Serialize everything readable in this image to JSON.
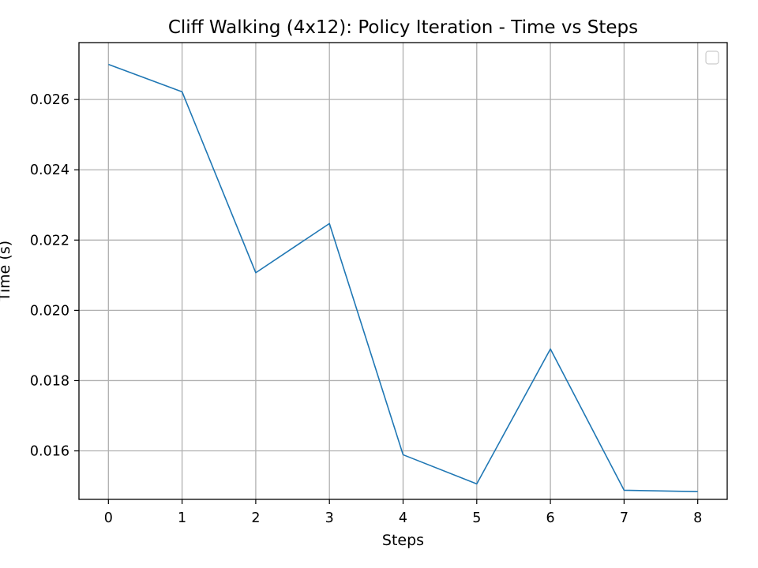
{
  "chart_data": {
    "type": "line",
    "title": "Cliff Walking (4x12): Policy Iteration - Time vs Steps",
    "xlabel": "Steps",
    "ylabel": "Time (s)",
    "x": [
      0,
      1,
      2,
      3,
      4,
      5,
      6,
      7,
      8
    ],
    "series": [
      {
        "values": [
          0.027,
          0.02622,
          0.02107,
          0.02247,
          0.01589,
          0.01506,
          0.0189,
          0.01488,
          0.01484
        ],
        "color": "#1f77b4"
      }
    ],
    "xticks": [
      0,
      1,
      2,
      3,
      4,
      5,
      6,
      7,
      8
    ],
    "xtick_labels": [
      "0",
      "1",
      "2",
      "3",
      "4",
      "5",
      "6",
      "7",
      "8"
    ],
    "yticks": [
      0.016,
      0.018,
      0.02,
      0.022,
      0.024,
      0.026
    ],
    "ytick_labels": [
      "0.016",
      "0.018",
      "0.020",
      "0.022",
      "0.024",
      "0.026"
    ],
    "xlim": [
      -0.4,
      8.4
    ],
    "ylim": [
      0.01462,
      0.02762
    ],
    "grid": true,
    "legend": {
      "placement": "top-right",
      "entries": []
    }
  }
}
